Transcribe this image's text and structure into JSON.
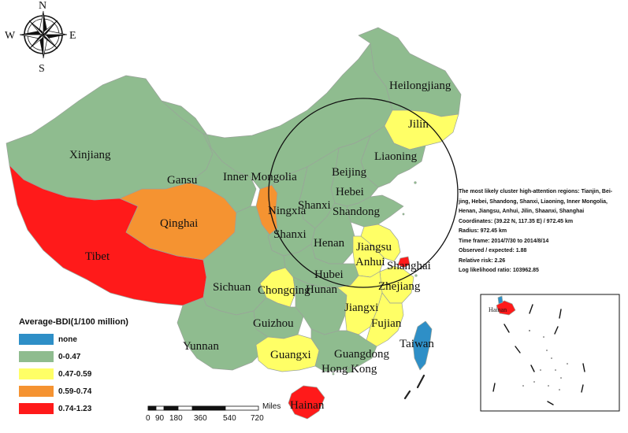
{
  "compass": {
    "north": "N",
    "south": "S",
    "east": "E",
    "west": "W"
  },
  "colors": {
    "none": "#2e8fc7",
    "low": "#8fbc8f",
    "mid": "#ffff66",
    "high": "#f59331",
    "top": "#ff1a1a",
    "border": "#9aa39a"
  },
  "provinces": [
    {
      "id": "heilongjiang",
      "name": "Heilongjiang",
      "bin": "low"
    },
    {
      "id": "jilin",
      "name": "Jilin",
      "bin": "mid"
    },
    {
      "id": "xinjiang",
      "name": "Xinjiang",
      "bin": "low"
    },
    {
      "id": "liaoning",
      "name": "Liaoning",
      "bin": "low"
    },
    {
      "id": "gansu",
      "name": "Gansu",
      "bin": "low"
    },
    {
      "id": "inner-mongolia",
      "name": "Inner Mongolia",
      "bin": "low"
    },
    {
      "id": "beijing",
      "name": "Beijing",
      "bin": "top"
    },
    {
      "id": "hebei",
      "name": "Hebei",
      "bin": "low"
    },
    {
      "id": "ningxia",
      "name": "Ningxia",
      "bin": "high"
    },
    {
      "id": "shanxi",
      "name": "Shanxi",
      "bin": "low"
    },
    {
      "id": "shandong",
      "name": "Shandong",
      "bin": "low"
    },
    {
      "id": "qinghai",
      "name": "Qinghai",
      "bin": "high"
    },
    {
      "id": "shaanxi",
      "name": "Shanxi",
      "bin": "low"
    },
    {
      "id": "henan",
      "name": "Henan",
      "bin": "low"
    },
    {
      "id": "jiangsu",
      "name": "Jiangsu",
      "bin": "mid"
    },
    {
      "id": "tibet",
      "name": "Tibet",
      "bin": "top"
    },
    {
      "id": "anhui",
      "name": "Anhui",
      "bin": "mid"
    },
    {
      "id": "shanghai",
      "name": "Shanghai",
      "bin": "top"
    },
    {
      "id": "hubei",
      "name": "Hubei",
      "bin": "low"
    },
    {
      "id": "sichuan",
      "name": "Sichuan",
      "bin": "low"
    },
    {
      "id": "chongqing",
      "name": "Chongqing",
      "bin": "mid"
    },
    {
      "id": "zhejiang",
      "name": "Zhejiang",
      "bin": "mid"
    },
    {
      "id": "hunan",
      "name": "Hunan",
      "bin": "low"
    },
    {
      "id": "jiangxi",
      "name": "Jiangxi",
      "bin": "mid"
    },
    {
      "id": "guizhou",
      "name": "Guizhou",
      "bin": "low"
    },
    {
      "id": "fujian",
      "name": "Fujian",
      "bin": "mid"
    },
    {
      "id": "taiwan",
      "name": "Taiwan",
      "bin": "none"
    },
    {
      "id": "yunnan",
      "name": "Yunnan",
      "bin": "low"
    },
    {
      "id": "guangxi",
      "name": "Guangxi",
      "bin": "mid"
    },
    {
      "id": "guangdong",
      "name": "Guangdong",
      "bin": "low"
    },
    {
      "id": "hongkong",
      "name": "Hong Kong",
      "bin": "low"
    },
    {
      "id": "hainan",
      "name": "Hainan",
      "bin": "top"
    }
  ],
  "inset": {
    "label": "Hainan"
  },
  "legend": {
    "title": "Average-BDI(1/100 million)",
    "items": [
      {
        "label": "none",
        "color": "#2e8fc7"
      },
      {
        "label": "0-0.47",
        "color": "#8fbc8f"
      },
      {
        "label": "0.47-0.59",
        "color": "#ffff66"
      },
      {
        "label": "0.59-0.74",
        "color": "#f59331"
      },
      {
        "label": "0.74-1.23",
        "color": "#ff1a1a"
      }
    ]
  },
  "cluster_info": {
    "line1": "The most likely cluster high-attention regions: Tianjin, Bei-",
    "line2": "jing, Hebei, Shandong, Shanxi, Liaoning, Inner Mongolia,",
    "line3": "Henan, Jiangsu, Anhui, Jilin, Shaanxi, Shanghai",
    "coords": "Coordinates: (39.22 N, 117.35 E) / 972.45 km",
    "radius": "Radius: 972.45 km",
    "timeframe": "Time frame: 2014/7/30 to 2014/8/14",
    "observed": "Observed / expected: 1.88",
    "rr": "Relative risk: 2.26",
    "llr": "Log likelihood ratio: 103962.85"
  },
  "scale": {
    "ticks": [
      "0",
      "90",
      "180",
      "360",
      "540",
      "720"
    ],
    "unit": "Miles"
  }
}
